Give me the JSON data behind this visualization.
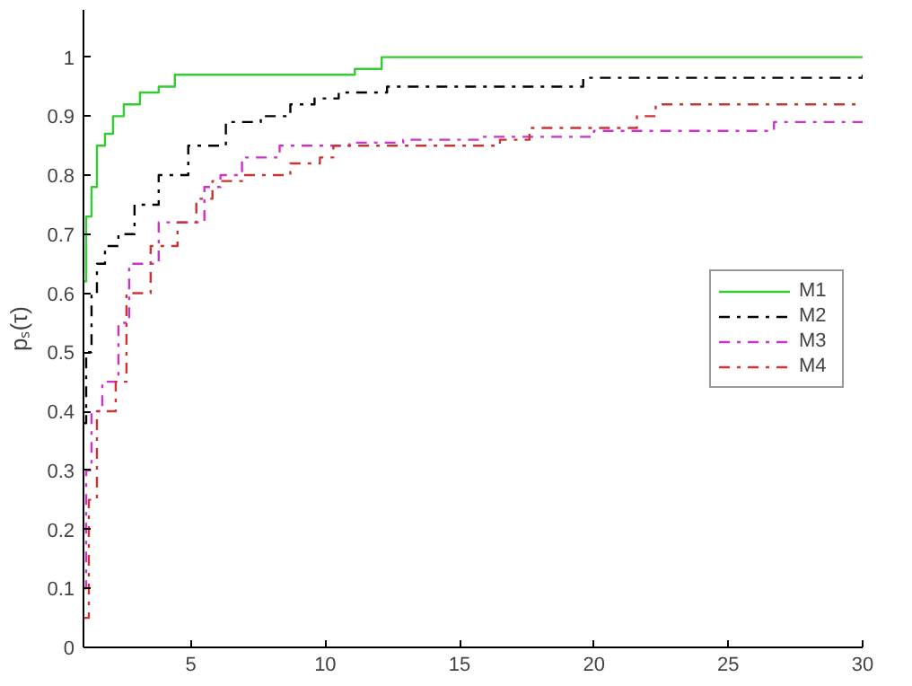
{
  "chart_data": {
    "type": "step",
    "ylabel": "pₛ(τ)",
    "xlim": [
      1,
      30
    ],
    "ylim": [
      0,
      1.08
    ],
    "xticks": [
      5,
      10,
      15,
      20,
      25,
      30
    ],
    "yticks": [
      0,
      0.1,
      0.2,
      0.3,
      0.4,
      0.5,
      0.6,
      0.7,
      0.8,
      0.9,
      1
    ],
    "grid": false,
    "legend": "right",
    "marker": "none",
    "series": [
      {
        "name": "M1",
        "color": "#33cc33",
        "line_style": "solid",
        "x": [
          1,
          1.1,
          1.3,
          1.5,
          1.8,
          2.1,
          2.5,
          3.1,
          3.8,
          4.4,
          11.1,
          12.1,
          30
        ],
        "values": [
          0.62,
          0.73,
          0.78,
          0.85,
          0.87,
          0.9,
          0.92,
          0.94,
          0.95,
          0.97,
          0.98,
          1,
          1
        ]
      },
      {
        "name": "M2",
        "color": "#000000",
        "line_style": "dashdot",
        "x": [
          1,
          1.1,
          1.3,
          1.5,
          1.8,
          2.3,
          2.9,
          3.8,
          4.9,
          6.3,
          7.6,
          8.7,
          9.6,
          10.5,
          12.3,
          19.6,
          30
        ],
        "values": [
          0.38,
          0.5,
          0.6,
          0.65,
          0.68,
          0.7,
          0.75,
          0.8,
          0.85,
          0.89,
          0.9,
          0.92,
          0.93,
          0.94,
          0.95,
          0.965,
          0.97
        ]
      },
      {
        "name": "M3",
        "color": "#cc33cc",
        "line_style": "dashdot",
        "x": [
          1,
          1.1,
          1.3,
          1.7,
          2.3,
          2.7,
          3.8,
          5.5,
          6.1,
          6.9,
          8.3,
          10.9,
          12.9,
          15.8,
          20,
          26.7,
          30
        ],
        "values": [
          0.1,
          0.3,
          0.4,
          0.45,
          0.55,
          0.65,
          0.72,
          0.78,
          0.8,
          0.83,
          0.85,
          0.855,
          0.86,
          0.865,
          0.875,
          0.89,
          0.9
        ]
      },
      {
        "name": "M4",
        "color": "#cc3333",
        "line_style": "dashdot",
        "x": [
          1,
          1.2,
          1.5,
          2.2,
          2.6,
          3.5,
          4.5,
          5.2,
          5.8,
          6.9,
          8.7,
          9.8,
          10.3,
          16.5,
          17.6,
          21.6,
          22.3,
          30
        ],
        "values": [
          0.05,
          0.25,
          0.4,
          0.45,
          0.6,
          0.68,
          0.72,
          0.76,
          0.79,
          0.8,
          0.82,
          0.83,
          0.85,
          0.86,
          0.88,
          0.9,
          0.92,
          0.92
        ]
      }
    ]
  }
}
